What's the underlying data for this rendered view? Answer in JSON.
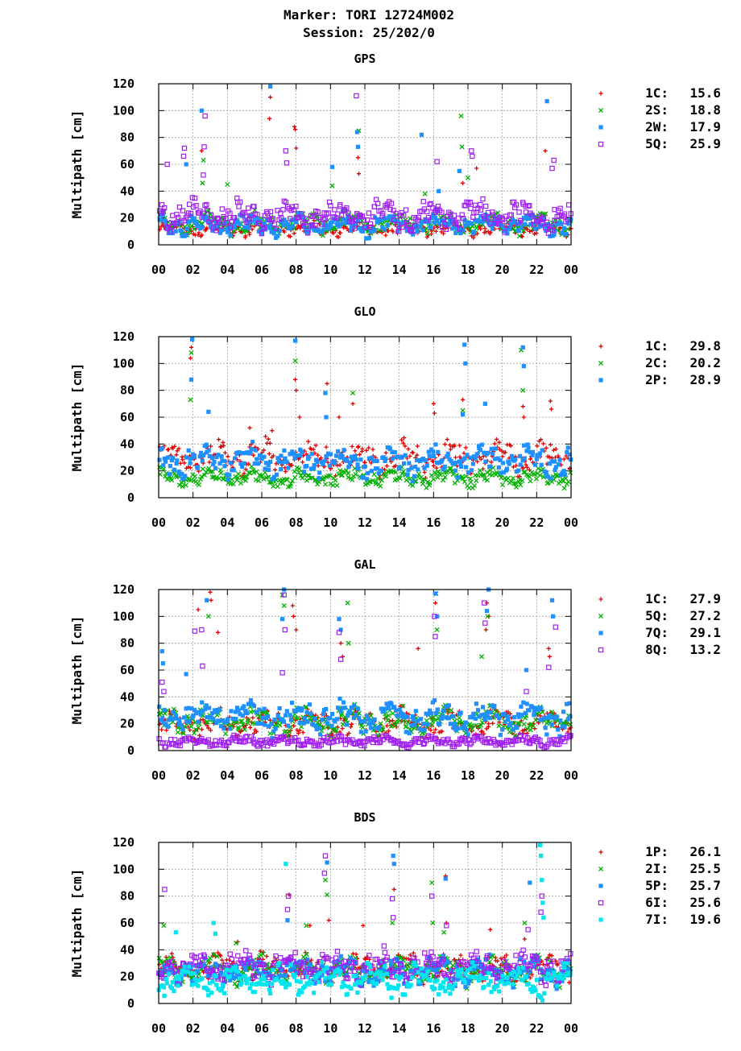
{
  "figure": {
    "title_line1": "Marker: TORI 12724M002",
    "title_line2": "Session: 25/202/0"
  },
  "chart_data": [
    {
      "type": "scatter",
      "title": "GPS",
      "ylabel": "Multipath [cm]",
      "ylim": [
        0,
        120
      ],
      "xlim": [
        0,
        24
      ],
      "yticks": [
        "0",
        "20",
        "40",
        "60",
        "80",
        "100",
        "120"
      ],
      "xticks": [
        "00",
        "02",
        "04",
        "06",
        "08",
        "10",
        "12",
        "14",
        "16",
        "18",
        "20",
        "22",
        "00"
      ],
      "grid": true,
      "legend_position": "right",
      "series": [
        {
          "name": "1C",
          "value": "15.6",
          "color": "#e00000",
          "marker": "plus",
          "base": 12,
          "noise": 4,
          "spikes": [
            [
              6.45,
              94
            ],
            [
              6.5,
              110
            ],
            [
              7.9,
              88
            ],
            [
              7.95,
              86
            ],
            [
              8.0,
              72
            ],
            [
              11.6,
              65
            ],
            [
              11.65,
              53
            ],
            [
              17.7,
              46
            ],
            [
              18.5,
              57
            ],
            [
              22.5,
              70
            ],
            [
              2.5,
              70
            ]
          ]
        },
        {
          "name": "2S",
          "value": "18.8",
          "color": "#00b000",
          "marker": "cross",
          "base": 16,
          "noise": 6,
          "spikes": [
            [
              2.6,
              63
            ],
            [
              2.55,
              46
            ],
            [
              4.0,
              45
            ],
            [
              10.1,
              44
            ],
            [
              11.65,
              85
            ],
            [
              15.5,
              38
            ],
            [
              17.6,
              96
            ],
            [
              17.65,
              73
            ],
            [
              18.0,
              50
            ]
          ]
        },
        {
          "name": "2W",
          "value": "17.9",
          "color": "#1e90ff",
          "marker": "square",
          "base": 15,
          "noise": 6,
          "spikes": [
            [
              6.5,
              118
            ],
            [
              2.5,
              100
            ],
            [
              11.55,
              84
            ],
            [
              11.6,
              73
            ],
            [
              15.3,
              82
            ],
            [
              10.1,
              58
            ],
            [
              17.5,
              55
            ],
            [
              16.3,
              40
            ],
            [
              22.6,
              107
            ],
            [
              1.6,
              60
            ]
          ]
        },
        {
          "name": "5Q",
          "value": "25.9",
          "color": "#a020f0",
          "marker": "opensquare",
          "base": 22,
          "noise": 8,
          "spikes": [
            [
              11.5,
              111
            ],
            [
              2.7,
              96
            ],
            [
              2.65,
              73
            ],
            [
              1.5,
              72
            ],
            [
              1.45,
              66
            ],
            [
              7.4,
              70
            ],
            [
              7.45,
              61
            ],
            [
              16.2,
              62
            ],
            [
              18.2,
              70
            ],
            [
              18.25,
              66
            ],
            [
              0.5,
              60
            ],
            [
              23.0,
              63
            ],
            [
              22.9,
              57
            ],
            [
              2.6,
              52
            ]
          ]
        }
      ]
    },
    {
      "type": "scatter",
      "title": "GLO",
      "ylabel": "Multipath [cm]",
      "ylim": [
        0,
        120
      ],
      "xlim": [
        0,
        24
      ],
      "yticks": [
        "0",
        "20",
        "40",
        "60",
        "80",
        "100",
        "120"
      ],
      "xticks": [
        "00",
        "02",
        "04",
        "06",
        "08",
        "10",
        "12",
        "14",
        "16",
        "18",
        "20",
        "22",
        "00"
      ],
      "grid": true,
      "legend_position": "right",
      "series": [
        {
          "name": "1C",
          "value": "29.8",
          "color": "#e00000",
          "marker": "plus",
          "base": 30,
          "noise": 9,
          "spikes": [
            [
              1.9,
              112
            ],
            [
              1.85,
              104
            ],
            [
              7.95,
              88
            ],
            [
              8.0,
              80
            ],
            [
              8.2,
              60
            ],
            [
              9.8,
              85
            ],
            [
              10.5,
              60
            ],
            [
              11.3,
              70
            ],
            [
              16.0,
              70
            ],
            [
              16.05,
              63
            ],
            [
              17.7,
              73
            ],
            [
              21.2,
              68
            ],
            [
              21.25,
              60
            ],
            [
              22.8,
              72
            ],
            [
              22.85,
              66
            ],
            [
              5.3,
              52
            ],
            [
              6.6,
              50
            ]
          ]
        },
        {
          "name": "2C",
          "value": "20.2",
          "color": "#00b000",
          "marker": "cross",
          "base": 15,
          "noise": 5,
          "spikes": [
            [
              1.9,
              108
            ],
            [
              1.85,
              73
            ],
            [
              7.95,
              102
            ],
            [
              11.3,
              78
            ],
            [
              17.7,
              65
            ],
            [
              21.1,
              110
            ],
            [
              21.2,
              80
            ]
          ]
        },
        {
          "name": "2P",
          "value": "28.9",
          "color": "#1e90ff",
          "marker": "square",
          "base": 27,
          "noise": 9,
          "spikes": [
            [
              1.95,
              118
            ],
            [
              1.9,
              88
            ],
            [
              2.9,
              64
            ],
            [
              7.95,
              117
            ],
            [
              9.7,
              78
            ],
            [
              9.75,
              60
            ],
            [
              17.8,
              114
            ],
            [
              17.85,
              100
            ],
            [
              19.0,
              70
            ],
            [
              21.2,
              112
            ],
            [
              21.25,
              98
            ],
            [
              17.7,
              62
            ]
          ]
        }
      ]
    },
    {
      "type": "scatter",
      "title": "GAL",
      "ylabel": "Multipath [cm]",
      "ylim": [
        0,
        120
      ],
      "xlim": [
        0,
        24
      ],
      "yticks": [
        "0",
        "20",
        "40",
        "60",
        "80",
        "100",
        "120"
      ],
      "xticks": [
        "00",
        "02",
        "04",
        "06",
        "08",
        "10",
        "12",
        "14",
        "16",
        "18",
        "20",
        "22",
        "00"
      ],
      "grid": true,
      "legend_position": "right",
      "series": [
        {
          "name": "1C",
          "value": "27.9",
          "color": "#e00000",
          "marker": "plus",
          "base": 20,
          "noise": 8,
          "spikes": [
            [
              2.3,
              105
            ],
            [
              3.0,
              118
            ],
            [
              3.05,
              112
            ],
            [
              3.45,
              88
            ],
            [
              7.8,
              108
            ],
            [
              7.85,
              100
            ],
            [
              8.0,
              90
            ],
            [
              10.6,
              80
            ],
            [
              10.7,
              70
            ],
            [
              15.1,
              76
            ],
            [
              16.1,
              110
            ],
            [
              19.1,
              110
            ],
            [
              19.05,
              90
            ],
            [
              19.2,
              100
            ],
            [
              22.7,
              76
            ],
            [
              22.75,
              70
            ]
          ]
        },
        {
          "name": "5Q",
          "value": "27.2",
          "color": "#00b000",
          "marker": "cross",
          "base": 22,
          "noise": 8,
          "spikes": [
            [
              2.9,
              100
            ],
            [
              7.2,
              116
            ],
            [
              7.3,
              108
            ],
            [
              11.0,
              110
            ],
            [
              11.05,
              80
            ],
            [
              16.15,
              117
            ],
            [
              16.2,
              90
            ],
            [
              19.15,
              100
            ],
            [
              18.8,
              70
            ]
          ]
        },
        {
          "name": "7Q",
          "value": "29.1",
          "color": "#1e90ff",
          "marker": "square",
          "base": 25,
          "noise": 9,
          "spikes": [
            [
              0.2,
              74
            ],
            [
              0.25,
              65
            ],
            [
              2.8,
              112
            ],
            [
              7.3,
              120
            ],
            [
              7.2,
              98
            ],
            [
              10.5,
              98
            ],
            [
              10.6,
              90
            ],
            [
              16.1,
              117
            ],
            [
              16.2,
              100
            ],
            [
              19.2,
              120
            ],
            [
              19.1,
              104
            ],
            [
              21.4,
              60
            ],
            [
              22.9,
              112
            ],
            [
              22.95,
              100
            ],
            [
              1.6,
              57
            ]
          ]
        },
        {
          "name": "8Q",
          "value": "13.2",
          "color": "#a020f0",
          "marker": "opensquare",
          "base": 7,
          "noise": 3,
          "spikes": [
            [
              2.1,
              89
            ],
            [
              2.5,
              90
            ],
            [
              2.55,
              63
            ],
            [
              7.3,
              116
            ],
            [
              7.35,
              90
            ],
            [
              7.2,
              58
            ],
            [
              10.5,
              88
            ],
            [
              10.6,
              68
            ],
            [
              16.05,
              100
            ],
            [
              16.1,
              85
            ],
            [
              18.95,
              110
            ],
            [
              19.0,
              95
            ],
            [
              22.7,
              62
            ],
            [
              23.1,
              92
            ],
            [
              21.4,
              44
            ],
            [
              0.3,
              44
            ],
            [
              0.2,
              51
            ]
          ]
        }
      ]
    },
    {
      "type": "scatter",
      "title": "BDS",
      "ylabel": "Multipath [cm]",
      "ylim": [
        0,
        120
      ],
      "xlim": [
        0,
        24
      ],
      "yticks": [
        "0",
        "20",
        "40",
        "60",
        "80",
        "100",
        "120"
      ],
      "xticks": [
        "00",
        "02",
        "04",
        "06",
        "08",
        "10",
        "12",
        "14",
        "16",
        "18",
        "20",
        "22",
        "00"
      ],
      "grid": true,
      "legend_position": "right",
      "series": [
        {
          "name": "1P",
          "value": "26.1",
          "color": "#e00000",
          "marker": "plus",
          "base": 26,
          "noise": 8,
          "spikes": [
            [
              7.6,
              81
            ],
            [
              9.9,
              62
            ],
            [
              11.9,
              58
            ],
            [
              13.7,
              85
            ],
            [
              16.7,
              95
            ],
            [
              16.75,
              60
            ],
            [
              19.3,
              55
            ],
            [
              21.3,
              48
            ],
            [
              4.6,
              46
            ],
            [
              8.8,
              58
            ]
          ]
        },
        {
          "name": "2I",
          "value": "25.5",
          "color": "#00b000",
          "marker": "cross",
          "base": 25,
          "noise": 8,
          "spikes": [
            [
              0.3,
              58
            ],
            [
              8.6,
              58
            ],
            [
              9.8,
              81
            ],
            [
              9.7,
              92
            ],
            [
              13.6,
              60
            ],
            [
              15.9,
              90
            ],
            [
              15.95,
              60
            ],
            [
              16.6,
              53
            ],
            [
              21.3,
              60
            ],
            [
              4.5,
              45
            ]
          ]
        },
        {
          "name": "5P",
          "value": "25.7",
          "color": "#1e90ff",
          "marker": "square",
          "base": 24,
          "noise": 8,
          "spikes": [
            [
              9.8,
              105
            ],
            [
              13.65,
              110
            ],
            [
              13.7,
              104
            ],
            [
              16.7,
              93
            ],
            [
              21.6,
              90
            ],
            [
              7.5,
              62
            ]
          ]
        },
        {
          "name": "6I",
          "value": "25.6",
          "color": "#a020f0",
          "marker": "opensquare",
          "base": 27,
          "noise": 9,
          "spikes": [
            [
              0.35,
              85
            ],
            [
              7.55,
              80
            ],
            [
              7.5,
              70
            ],
            [
              9.7,
              110
            ],
            [
              9.65,
              97
            ],
            [
              13.6,
              78
            ],
            [
              13.65,
              64
            ],
            [
              15.9,
              80
            ],
            [
              16.75,
              58
            ],
            [
              22.3,
              80
            ],
            [
              22.25,
              68
            ],
            [
              21.5,
              55
            ]
          ]
        },
        {
          "name": "7I",
          "value": "19.6",
          "color": "#00e5ee",
          "marker": "square",
          "base": 17,
          "noise": 9,
          "spikes": [
            [
              7.4,
              104
            ],
            [
              22.2,
              118
            ],
            [
              22.25,
              110
            ],
            [
              22.3,
              92
            ],
            [
              22.35,
              75
            ],
            [
              22.4,
              64
            ],
            [
              3.2,
              60
            ],
            [
              3.3,
              52
            ],
            [
              1.0,
              53
            ]
          ]
        }
      ]
    }
  ]
}
